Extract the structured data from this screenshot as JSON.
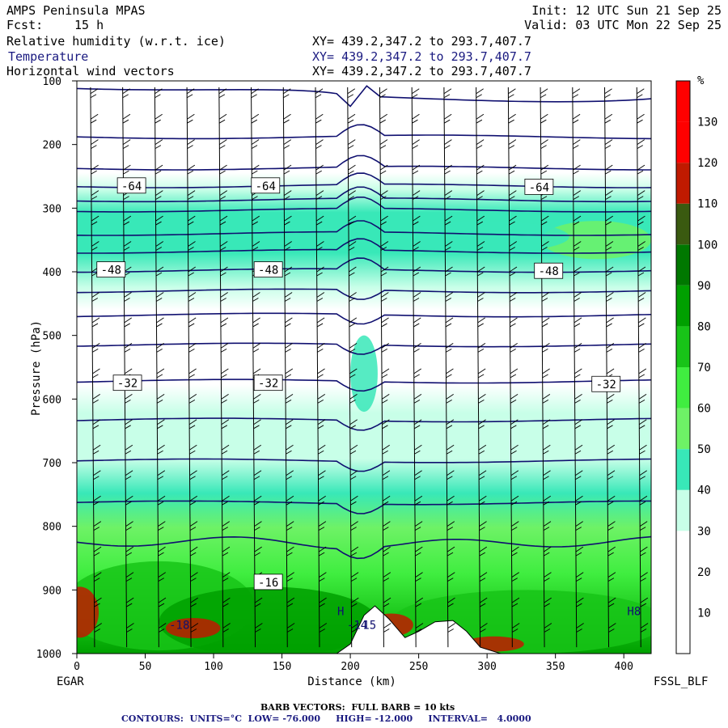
{
  "header": {
    "title": "AMPS Peninsula MPAS",
    "fcst_label": "Fcst:",
    "fcst_value": "15 h",
    "init": "Init: 12 UTC Sun 21 Sep 25",
    "valid": "Valid: 03 UTC Mon 22 Sep 25",
    "fields": [
      {
        "name": "Relative humidity (w.r.t. ice)",
        "xy": "XY= 439.2,347.2 to 293.7,407.7"
      },
      {
        "name": "Temperature",
        "xy": "XY= 439.2,347.2 to 293.7,407.7"
      },
      {
        "name": "Horizontal wind vectors",
        "xy": "XY= 439.2,347.2 to 293.7,407.7"
      }
    ]
  },
  "footer": {
    "barb": "BARB VECTORS:  FULL BARB = 10 kts",
    "contours": "CONTOURS:  UNITS=°C  LOW= -76.000     HIGH= -12.000     INTERVAL=   4.0000"
  },
  "chart_data": {
    "type": "heatmap",
    "title": "AMPS Peninsula MPAS",
    "xlabel": "Distance (km)",
    "ylabel": "Pressure (hPa)",
    "xlim": [
      0,
      420
    ],
    "ylim": [
      1000,
      100
    ],
    "x_ticks": [
      0,
      50,
      100,
      150,
      200,
      250,
      300,
      350,
      400
    ],
    "y_ticks": [
      100,
      200,
      300,
      400,
      500,
      600,
      700,
      800,
      900,
      1000
    ],
    "x_start_label": "EGAR",
    "x_end_label": "FSSL_BLF",
    "colorbar": {
      "unit": "%",
      "levels": [
        10,
        20,
        30,
        40,
        50,
        60,
        70,
        80,
        90,
        100,
        110,
        120,
        130
      ],
      "colors": [
        "#ffffff",
        "#ffffff",
        "#ffffff",
        "#c8ffe8",
        "#38e8b8",
        "#6ef266",
        "#40ee40",
        "#18c418",
        "#00a000",
        "#007800",
        "#3a5a10",
        "#c01a00",
        "#ff0000",
        "#ff0000"
      ]
    },
    "temperature_contours": {
      "units": "°C",
      "low": -76,
      "high": -12,
      "interval": 4,
      "levels_pressure": [
        {
          "t": -76,
          "p": 188
        },
        {
          "t": -72,
          "p": 237
        },
        {
          "t": -68,
          "p": 265
        },
        {
          "t": -64,
          "p": 287
        },
        {
          "t": -60,
          "p": 303
        },
        {
          "t": -56,
          "p": 340
        },
        {
          "t": -52,
          "p": 368
        },
        {
          "t": -48,
          "p": 398
        },
        {
          "t": -44,
          "p": 430
        },
        {
          "t": -40,
          "p": 468
        },
        {
          "t": -36,
          "p": 515
        },
        {
          "t": -32,
          "p": 572
        },
        {
          "t": -28,
          "p": 633
        },
        {
          "t": -24,
          "p": 697
        },
        {
          "t": -20,
          "p": 763
        },
        {
          "t": -16,
          "p": 826
        }
      ],
      "labels": [
        {
          "text": "-64",
          "x": 40,
          "p": 265
        },
        {
          "text": "-64",
          "x": 138,
          "p": 265
        },
        {
          "text": "-64",
          "x": 338,
          "p": 267
        },
        {
          "text": "-48",
          "x": 25,
          "p": 397
        },
        {
          "text": "-48",
          "x": 140,
          "p": 397
        },
        {
          "text": "-48",
          "x": 345,
          "p": 399
        },
        {
          "text": "-32",
          "x": 37,
          "p": 575
        },
        {
          "text": "-32",
          "x": 140,
          "p": 575
        },
        {
          "text": "-32",
          "x": 387,
          "p": 577
        },
        {
          "text": "-16",
          "x": 140,
          "p": 888
        },
        {
          "text": "-18",
          "x": 75,
          "p": 955
        },
        {
          "text": "-14",
          "x": 205,
          "p": 955
        },
        {
          "text": "15",
          "x": 214,
          "p": 955
        },
        {
          "text": "H",
          "x": 193,
          "p": 933
        },
        {
          "text": "H",
          "x": 405,
          "p": 933
        },
        {
          "text": "8",
          "x": 410,
          "p": 933
        }
      ]
    },
    "terrain_surface": [
      {
        "x": 0,
        "p": 1000
      },
      {
        "x": 190,
        "p": 1000
      },
      {
        "x": 200,
        "p": 985
      },
      {
        "x": 210,
        "p": 940
      },
      {
        "x": 218,
        "p": 925
      },
      {
        "x": 228,
        "p": 945
      },
      {
        "x": 240,
        "p": 975
      },
      {
        "x": 250,
        "p": 965
      },
      {
        "x": 262,
        "p": 950
      },
      {
        "x": 275,
        "p": 948
      },
      {
        "x": 285,
        "p": 965
      },
      {
        "x": 295,
        "p": 990
      },
      {
        "x": 310,
        "p": 1000
      },
      {
        "x": 420,
        "p": 1000
      }
    ],
    "wind_barbs": {
      "full_barb_kts": 10
    }
  }
}
